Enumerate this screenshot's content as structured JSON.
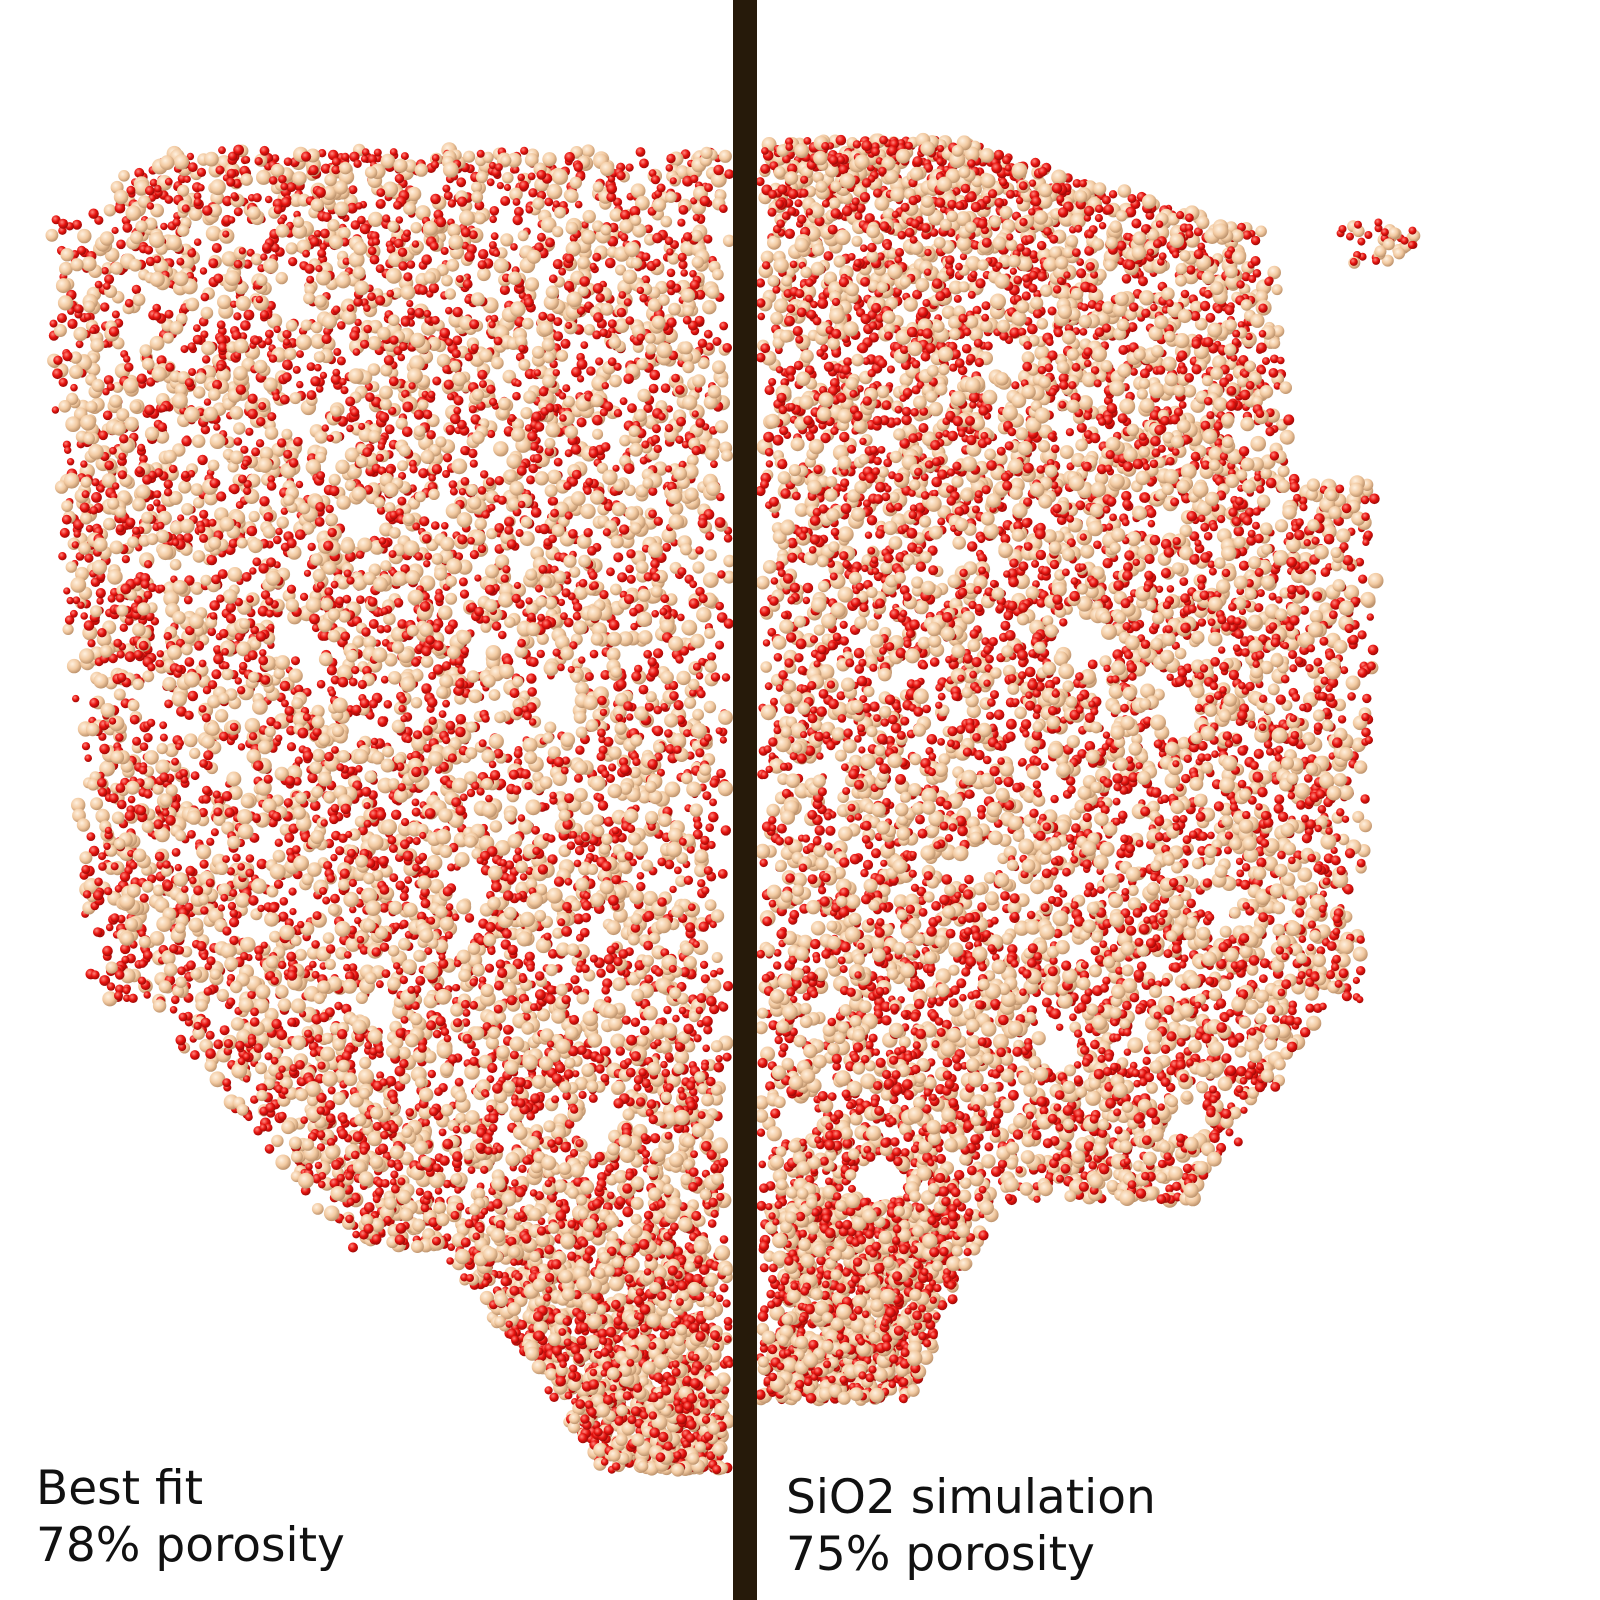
{
  "panels": [
    {
      "title": "Best fit",
      "porosity": "78% porosity"
    },
    {
      "title": "SiO2 simulation",
      "porosity": "75% porosity"
    }
  ],
  "colors": {
    "background": "#ffffff",
    "divider": "#261a0a",
    "oxygen_atom": "#e8130f",
    "silicon_atom": "#f2c9a0"
  }
}
